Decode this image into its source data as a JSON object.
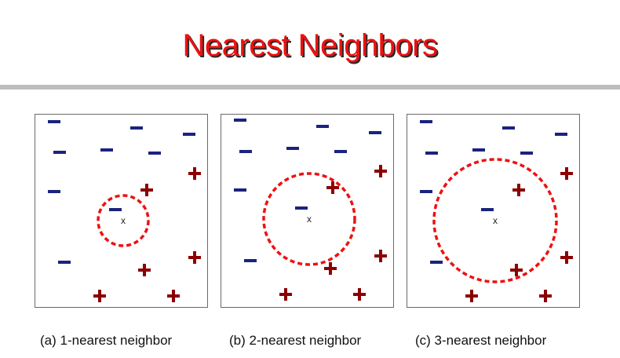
{
  "title": "Nearest Neighbors",
  "colors": {
    "title": "#ee1111",
    "negative": "#1a237e",
    "positive": "#8b0000",
    "circle": "#ee1111"
  },
  "panels": [
    {
      "caption": "(a) 1-nearest neighbor",
      "query_label": "x",
      "negatives": [
        [
          24,
          9
        ],
        [
          129,
          17
        ],
        [
          196,
          25
        ],
        [
          31,
          48
        ],
        [
          91,
          45
        ],
        [
          152,
          49
        ],
        [
          24,
          98
        ],
        [
          102,
          121
        ],
        [
          37,
          188
        ]
      ],
      "positives": [
        [
          203,
          75
        ],
        [
          142,
          96
        ],
        [
          203,
          182
        ],
        [
          139,
          198
        ],
        [
          82,
          231
        ],
        [
          176,
          231
        ]
      ],
      "query": [
        112,
        135
      ],
      "radius": 32
    },
    {
      "caption": "(b) 2-nearest neighbor",
      "query_label": "x",
      "negatives": [
        [
          24,
          7
        ],
        [
          129,
          15
        ],
        [
          196,
          23
        ],
        [
          31,
          47
        ],
        [
          91,
          43
        ],
        [
          152,
          47
        ],
        [
          24,
          96
        ],
        [
          102,
          119
        ],
        [
          37,
          186
        ]
      ],
      "positives": [
        [
          203,
          72
        ],
        [
          142,
          93
        ],
        [
          203,
          180
        ],
        [
          139,
          196
        ],
        [
          82,
          229
        ],
        [
          176,
          229
        ]
      ],
      "query": [
        112,
        133
      ],
      "radius": 58
    },
    {
      "caption": "(c) 3-nearest neighbor",
      "query_label": "x",
      "negatives": [
        [
          24,
          9
        ],
        [
          129,
          17
        ],
        [
          196,
          25
        ],
        [
          31,
          49
        ],
        [
          91,
          45
        ],
        [
          152,
          49
        ],
        [
          24,
          98
        ],
        [
          102,
          121
        ],
        [
          37,
          188
        ]
      ],
      "positives": [
        [
          203,
          75
        ],
        [
          142,
          96
        ],
        [
          203,
          182
        ],
        [
          139,
          198
        ],
        [
          82,
          231
        ],
        [
          176,
          231
        ]
      ],
      "query": [
        112,
        135
      ],
      "radius": 78
    }
  ]
}
